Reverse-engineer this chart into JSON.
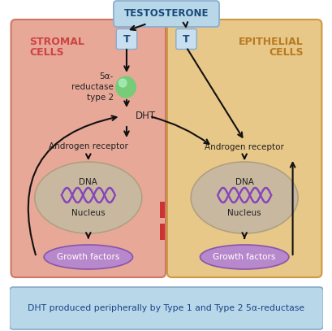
{
  "title": "TESTOSTERONE",
  "title_box_color": "#b8d8ea",
  "title_text_color": "#1a4a7a",
  "stromal_bg": "#e8a898",
  "stromal_label_line1": "STROMAL",
  "stromal_label_line2": "CELLS",
  "stromal_label_color": "#cc4444",
  "epithelial_bg": "#e8c888",
  "epithelial_label_line1": "EPITHELIAL",
  "epithelial_label_line2": "CELLS",
  "epithelial_label_color": "#b87a22",
  "T_box_color": "#c8dff0",
  "T_text": "T",
  "T_text_color": "#1a4a7a",
  "enzyme_label": "5α-\nreductase\ntype 2",
  "enzyme_color": "#77cc77",
  "enzyme_shine": "#aaeebb",
  "dht_label": "DHT",
  "androgen_label": "Androgen receptor",
  "dna_label": "DNA",
  "nucleus_label": "Nucleus",
  "nucleus_fill": "#c8b8a0",
  "nucleus_edge": "#b0a080",
  "growth_label": "Growth factors",
  "growth_fill": "#b888cc",
  "growth_edge": "#8855aa",
  "growth_text_color": "#ffffff",
  "bottom_box_color": "#b8d8ea",
  "bottom_text": "DHT produced peripherally by Type 1 and Type 2 5α-reductase",
  "bottom_text_color": "#1a4488",
  "connector_color": "#cc3333",
  "arrow_color": "#111111",
  "dna_color": "#8844bb",
  "bg_color": "#ffffff",
  "box_border_stromal": "#cc7766",
  "box_border_epithelial": "#cc9944",
  "box_border_bottom": "#88aac8"
}
